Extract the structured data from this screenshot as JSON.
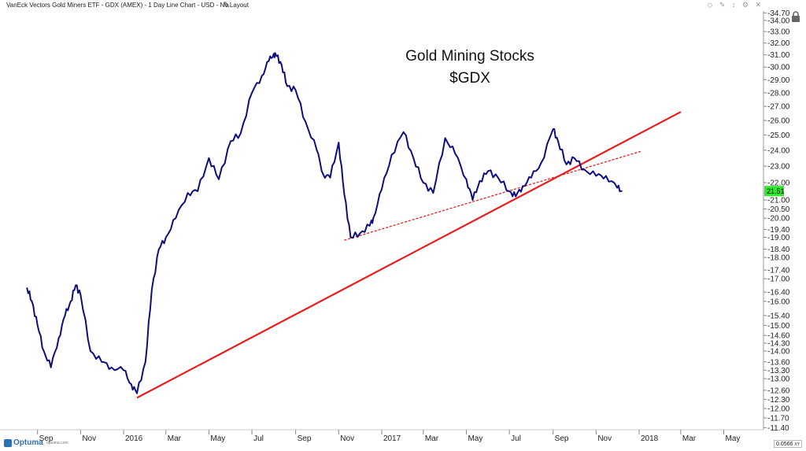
{
  "header": {
    "title": "VanEck Vectors Gold Miners ETF - GDX (AMEX) - 1 Day Line Chart - USD - No Layout",
    "edit_icon": "pencil-icon",
    "top_icons": "◇ ✎ ↕ ⚙ ✕"
  },
  "colors": {
    "price_line": "#0d0d80",
    "trend_line": "#e81d1d",
    "last_price_bg": "#2ee82e",
    "axis_text": "#222222",
    "logo": "#2d6fb5"
  },
  "footer": {
    "logo_text": "Optuma",
    "logo_url": "optuma.com",
    "scale_value": "0.0566",
    "scale_suffix": "XY"
  },
  "chart_data": {
    "type": "line",
    "title": "Gold Mining Stocks",
    "subtitle": "$GDX",
    "y_scale": "log",
    "y_axis_side": "right",
    "grid": false,
    "y_ticks": [
      "34.70",
      "34.00",
      "33.00",
      "32.00",
      "31.00",
      "30.00",
      "29.00",
      "28.00",
      "27.00",
      "26.00",
      "25.00",
      "24.00",
      "23.00",
      "22.00",
      "21.00",
      "20.50",
      "20.00",
      "19.40",
      "19.00",
      "18.40",
      "18.00",
      "17.40",
      "17.00",
      "16.40",
      "16.00",
      "15.40",
      "15.00",
      "14.60",
      "14.30",
      "14.00",
      "13.60",
      "13.30",
      "13.00",
      "12.60",
      "12.30",
      "12.00",
      "11.70",
      "11.40"
    ],
    "x_ticks": [
      "Sep",
      "Nov",
      "2016",
      "Mar",
      "May",
      "Jul",
      "Sep",
      "Nov",
      "2017",
      "Mar",
      "May",
      "Jul",
      "Sep",
      "Nov",
      "2018",
      "Mar",
      "May"
    ],
    "last_price": "21.51",
    "series": [
      {
        "x": [
          "2015-08-17",
          "2015-08-24",
          "2015-09-01",
          "2015-09-10",
          "2015-09-20",
          "2015-10-01",
          "2015-10-10",
          "2015-10-18",
          "2015-10-25",
          "2015-11-01",
          "2015-11-15",
          "2015-12-01",
          "2015-12-15",
          "2016-01-01",
          "2016-01-12",
          "2016-01-20",
          "2016-02-01",
          "2016-02-10",
          "2016-02-20",
          "2016-03-01",
          "2016-03-15",
          "2016-04-01",
          "2016-04-15",
          "2016-05-01",
          "2016-05-15",
          "2016-06-01",
          "2016-06-15",
          "2016-07-01",
          "2016-07-15",
          "2016-07-25",
          "2016-08-01",
          "2016-08-05",
          "2016-08-12",
          "2016-08-20",
          "2016-09-01",
          "2016-09-15",
          "2016-10-01",
          "2016-10-10",
          "2016-10-20",
          "2016-11-01",
          "2016-11-09",
          "2016-11-18",
          "2016-12-01",
          "2016-12-15",
          "2016-12-20",
          "2017-01-01",
          "2017-01-15",
          "2017-02-01",
          "2017-02-15",
          "2017-03-01",
          "2017-03-15",
          "2017-04-01",
          "2017-04-15",
          "2017-05-01",
          "2017-05-10",
          "2017-05-20",
          "2017-06-01",
          "2017-06-15",
          "2017-07-01",
          "2017-07-10",
          "2017-07-20",
          "2017-08-01",
          "2017-08-15",
          "2017-09-01",
          "2017-09-08",
          "2017-09-20",
          "2017-10-01",
          "2017-10-15",
          "2017-11-01",
          "2017-11-15",
          "2017-12-01",
          "2017-12-08"
        ],
        "y": [
          16.6,
          16.0,
          15.0,
          14.0,
          13.4,
          14.5,
          15.4,
          16.0,
          16.7,
          16.3,
          14.0,
          13.6,
          13.4,
          13.3,
          12.8,
          12.5,
          13.6,
          16.5,
          18.4,
          19.0,
          20.0,
          21.4,
          21.5,
          23.5,
          22.2,
          24.6,
          25.1,
          28.0,
          29.3,
          30.5,
          31.1,
          30.9,
          30.2,
          28.5,
          28.2,
          25.9,
          24.0,
          22.5,
          22.3,
          24.5,
          21.3,
          19.0,
          19.2,
          19.6,
          20.0,
          21.6,
          23.7,
          25.2,
          23.5,
          22.0,
          21.4,
          24.8,
          23.8,
          22.2,
          21.0,
          22.1,
          22.7,
          22.3,
          21.5,
          21.2,
          21.8,
          22.3,
          23.2,
          25.4,
          24.6,
          23.1,
          23.5,
          22.8,
          22.4,
          22.4,
          21.7,
          21.5
        ]
      }
    ],
    "trendlines": [
      {
        "style": "solid",
        "from": {
          "x": "2016-01-20",
          "y": 12.35
        },
        "to": {
          "x": "2018-03-01",
          "y": 26.6
        }
      },
      {
        "style": "dashed",
        "from": {
          "x": "2016-11-09",
          "y": 18.85
        },
        "to": {
          "x": "2018-01-05",
          "y": 23.95
        }
      }
    ]
  }
}
